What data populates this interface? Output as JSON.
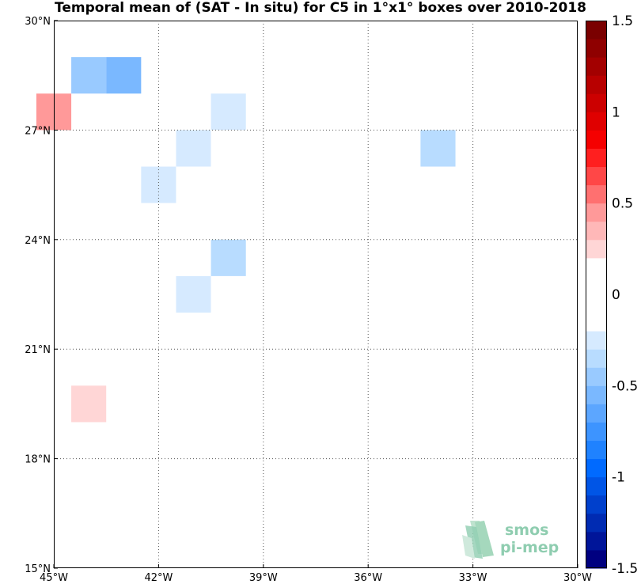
{
  "chart_data": {
    "type": "heatmap",
    "title": "Temporal mean of (SAT - In situ) for C5 in 1°x1° boxes over 2010-2018",
    "xlim": [
      -45,
      -30
    ],
    "ylim": [
      15,
      30
    ],
    "x_ticks": [
      {
        "value": -45,
        "label": "45°W"
      },
      {
        "value": -42,
        "label": "42°W"
      },
      {
        "value": -39,
        "label": "39°W"
      },
      {
        "value": -36,
        "label": "36°W"
      },
      {
        "value": -33,
        "label": "33°W"
      },
      {
        "value": -30,
        "label": "30°W"
      }
    ],
    "y_ticks": [
      {
        "value": 15,
        "label": "15°N"
      },
      {
        "value": 18,
        "label": "18°N"
      },
      {
        "value": 21,
        "label": "21°N"
      },
      {
        "value": 24,
        "label": "24°N"
      },
      {
        "value": 27,
        "label": "27°N"
      },
      {
        "value": 30,
        "label": "30°N"
      }
    ],
    "grid": true,
    "colorbar": {
      "range": [
        -1.5,
        1.5
      ],
      "levels": 30,
      "ticks": [
        {
          "value": 1.5,
          "label": "1.5"
        },
        {
          "value": 1,
          "label": "1"
        },
        {
          "value": 0.5,
          "label": "0.5"
        },
        {
          "value": 0,
          "label": "0"
        },
        {
          "value": -0.5,
          "label": "-0.5"
        },
        {
          "value": -1,
          "label": "-1"
        },
        {
          "value": -1.5,
          "label": "-1.5"
        }
      ],
      "colors": [
        "#000080",
        "#001599",
        "#002bb2",
        "#0040cc",
        "#0055e6",
        "#006aff",
        "#1f82ff",
        "#3d94ff",
        "#5ca6ff",
        "#7ab8ff",
        "#99caff",
        "#b8dcff",
        "#d6eaff",
        "#ffffff",
        "#ffffff",
        "#ffffff",
        "#ffffff",
        "#ffd6d6",
        "#ffb8b8",
        "#ff9999",
        "#ff7070",
        "#ff4747",
        "#ff1f1f",
        "#f50000",
        "#e00000",
        "#cc0000",
        "#b80000",
        "#a30000",
        "#8f0000",
        "#7a0000"
      ]
    },
    "cells": [
      {
        "lon": -41,
        "lat": 29.5,
        "value": -0.1
      },
      {
        "lon": -38,
        "lat": 29.5,
        "value": -0.2
      },
      {
        "lon": -37,
        "lat": 29.5,
        "value": -0.2
      },
      {
        "lon": -32,
        "lat": 29.5,
        "value": -0.2
      },
      {
        "lon": -44,
        "lat": 28.5,
        "value": -0.5
      },
      {
        "lon": -43,
        "lat": 28.5,
        "value": -0.6
      },
      {
        "lon": -40,
        "lat": 28.5,
        "value": -0.15
      },
      {
        "lon": -39,
        "lat": 28.5,
        "value": -0.15
      },
      {
        "lon": -32,
        "lat": 28.5,
        "value": -0.2
      },
      {
        "lon": -45,
        "lat": 27.5,
        "value": 0.4
      },
      {
        "lon": -40,
        "lat": 27.5,
        "value": -0.25
      },
      {
        "lon": -33,
        "lat": 27.5,
        "value": -0.1
      },
      {
        "lon": -41,
        "lat": 26.5,
        "value": -0.25
      },
      {
        "lon": -40,
        "lat": 26.5,
        "value": -0.15
      },
      {
        "lon": -34,
        "lat": 26.5,
        "value": -0.3
      },
      {
        "lon": -32,
        "lat": 26.5,
        "value": -0.1
      },
      {
        "lon": -42,
        "lat": 25.5,
        "value": -0.25
      },
      {
        "lon": -41,
        "lat": 25.5,
        "value": -0.1
      },
      {
        "lon": -42,
        "lat": 24.5,
        "value": -0.1
      },
      {
        "lon": -39,
        "lat": 24.5,
        "value": -0.1
      },
      {
        "lon": -36,
        "lat": 24.5,
        "value": -0.1
      },
      {
        "lon": -32,
        "lat": 24.5,
        "value": 0.1
      },
      {
        "lon": -44,
        "lat": 23.5,
        "value": -0.2
      },
      {
        "lon": -43,
        "lat": 23.5,
        "value": -0.15
      },
      {
        "lon": -40,
        "lat": 23.5,
        "value": -0.3
      },
      {
        "lon": -38,
        "lat": 23.5,
        "value": -0.1
      },
      {
        "lon": -41,
        "lat": 22.5,
        "value": -0.25
      },
      {
        "lon": -40,
        "lat": 22.5,
        "value": -0.15
      },
      {
        "lon": -36,
        "lat": 22.5,
        "value": -0.1
      },
      {
        "lon": -33,
        "lat": 21.5,
        "value": 0.1
      },
      {
        "lon": -36,
        "lat": 20.5,
        "value": -0.1
      },
      {
        "lon": -34,
        "lat": 20.5,
        "value": 0.1
      },
      {
        "lon": -44,
        "lat": 19.5,
        "value": 0.2
      },
      {
        "lon": -37,
        "lat": 19.5,
        "value": -0.1
      },
      {
        "lon": -45,
        "lat": 18.5,
        "value": -0.1
      },
      {
        "lon": -36,
        "lat": 17.5,
        "value": -0.1
      },
      {
        "lon": -35,
        "lat": 17.5,
        "value": -0.1
      }
    ]
  },
  "logo": {
    "line1": "smos",
    "line2": "pi-mep"
  }
}
